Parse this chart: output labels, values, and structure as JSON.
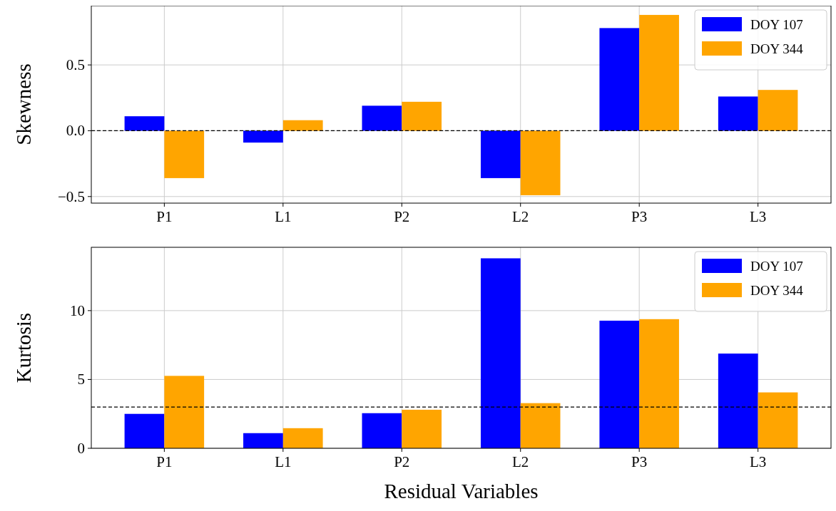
{
  "chart_data": [
    {
      "type": "bar",
      "ylabel": "Skewness",
      "categories": [
        "P1",
        "L1",
        "P2",
        "L2",
        "P3",
        "L3"
      ],
      "series": [
        {
          "name": "DOY 107",
          "color": "#0000ff",
          "values": [
            0.11,
            -0.09,
            0.19,
            -0.36,
            0.78,
            0.26
          ]
        },
        {
          "name": "DOY 344",
          "color": "#ffa500",
          "values": [
            -0.36,
            0.08,
            0.22,
            -0.49,
            0.88,
            0.31
          ]
        }
      ],
      "ylim": [
        -0.55,
        0.95
      ],
      "yticks": [
        {
          "value": -0.5,
          "label": "−0.5"
        },
        {
          "value": 0,
          "label": "0.0"
        },
        0.5
      ],
      "grid": true,
      "legend": "top right",
      "ref_lines": [
        {
          "axis": "y",
          "value": 0,
          "color": "#000000",
          "line_style": "dashed"
        }
      ]
    },
    {
      "type": "bar",
      "ylabel": "Kurtosis",
      "xlabel": "Residual Variables",
      "categories": [
        "P1",
        "L1",
        "P2",
        "L2",
        "P3",
        "L3"
      ],
      "series": [
        {
          "name": "DOY 107",
          "color": "#0000ff",
          "values": [
            2.5,
            1.1,
            2.55,
            13.8,
            9.27,
            6.88
          ]
        },
        {
          "name": "DOY 344",
          "color": "#ffa500",
          "values": [
            5.26,
            1.46,
            2.8,
            3.28,
            9.38,
            4.06
          ]
        }
      ],
      "ylim": [
        0,
        14.6
      ],
      "yticks": [
        0,
        5,
        10
      ],
      "grid": true,
      "legend": "top right",
      "ref_lines": [
        {
          "axis": "y",
          "value": 3,
          "color": "#000000",
          "line_style": "dashed"
        }
      ]
    }
  ]
}
